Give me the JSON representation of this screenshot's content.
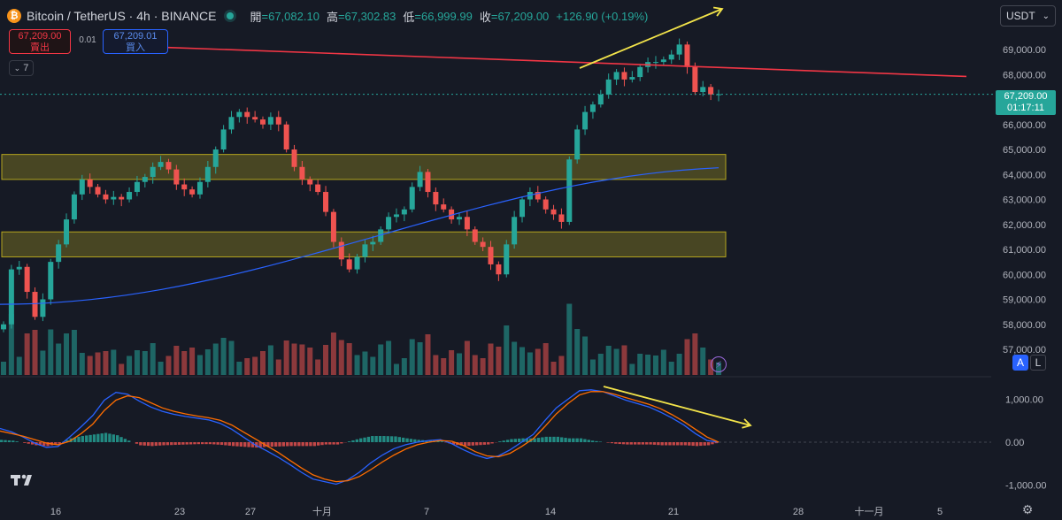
{
  "header": {
    "symbol": "Bitcoin / TetherUS · 4h · BINANCE",
    "logo": "₿",
    "open_label": "開",
    "open": "=67,082.10",
    "high_label": "高",
    "high": "=67,302.83",
    "low_label": "低",
    "low": "=66,999.99",
    "close_label": "收",
    "close": "=67,209.00",
    "change": "+126.90 (+0.19%)"
  },
  "trade": {
    "sell_price": "67,209.00",
    "sell_label": "賣出",
    "buy_price": "67,209.01",
    "buy_label": "買入",
    "spread": "0.01"
  },
  "indicators_toggle": {
    "count": "7",
    "icon": "chevron-down-icon"
  },
  "currency": {
    "label": "USDT",
    "icon": "chevron-down-icon"
  },
  "price_tag": {
    "price": "67,209.00",
    "countdown": "01:17:11"
  },
  "scale_buttons": {
    "auto": "A",
    "log": "L"
  },
  "colors": {
    "up": "#26a69a",
    "down": "#ef5350",
    "ma": "#2962ff",
    "trend": "#f23645",
    "annotation": "#f3e44a",
    "zone": "#b5a51e"
  },
  "chart_data": {
    "type": "candlestick",
    "interval": "4h",
    "y_axis": {
      "ticks": [
        "69,000.00",
        "68,000.00",
        "67,000.00",
        "66,000.00",
        "65,000.00",
        "64,000.00",
        "63,000.00",
        "62,000.00",
        "61,000.00",
        "60,000.00",
        "59,000.00",
        "58,000.00",
        "57,000.00"
      ],
      "range": [
        57000,
        69800
      ]
    },
    "x_axis": {
      "ticks": [
        "16",
        "23",
        "27",
        "十月",
        "7",
        "14",
        "21",
        "28",
        "十一月",
        "5"
      ]
    },
    "candles_close_path": [
      58000,
      60200,
      60300,
      59300,
      58300,
      59000,
      60500,
      61200,
      62200,
      63200,
      63800,
      63500,
      63200,
      63000,
      63100,
      63000,
      63300,
      63700,
      63900,
      64300,
      64500,
      64200,
      63600,
      63400,
      63200,
      63700,
      64300,
      65000,
      65800,
      66300,
      66500,
      66300,
      66200,
      66000,
      66300,
      66000,
      65000,
      64300,
      63800,
      63600,
      63300,
      62500,
      61300,
      60600,
      60200,
      60700,
      61200,
      61300,
      61800,
      62300,
      62400,
      62600,
      63500,
      64100,
      63300,
      62800,
      62600,
      62200,
      62300,
      61800,
      61300,
      61100,
      60400,
      60000,
      61200,
      62300,
      63000,
      63300,
      63000,
      62600,
      62400,
      62100,
      64600,
      65800,
      66500,
      66800,
      67200,
      67800,
      68100,
      67800,
      67900,
      68300,
      68500,
      68500,
      68600,
      68800,
      69200,
      68300,
      67300,
      67500,
      67200,
      67209
    ],
    "moving_average": {
      "start": 58800,
      "end": 64300
    },
    "zones": [
      {
        "from": 63800,
        "to": 64800
      },
      {
        "from": 60700,
        "to": 61700
      }
    ],
    "trendline": {
      "from": 68800,
      "to": 68100
    },
    "macd": {
      "y_ticks": [
        "1,000.00",
        "0.00",
        "-1,000.00"
      ],
      "range": [
        -1000,
        1100
      ],
      "macd_line": [
        320,
        240,
        120,
        -20,
        -120,
        -100,
        120,
        360,
        620,
        980,
        1160,
        1120,
        960,
        820,
        720,
        650,
        600,
        560,
        520,
        440,
        300,
        120,
        -60,
        -200,
        -350,
        -520,
        -700,
        -860,
        -920,
        -980,
        -880,
        -700,
        -480,
        -300,
        -150,
        -60,
        0,
        40,
        60,
        -40,
        -180,
        -300,
        -380,
        -320,
        -180,
        0,
        180,
        500,
        800,
        1000,
        1200,
        1220,
        1180,
        1080,
        980,
        900,
        820,
        700,
        560,
        400,
        200,
        40,
        0
      ],
      "signal_line": [
        260,
        200,
        140,
        60,
        -20,
        -60,
        20,
        200,
        420,
        740,
        980,
        1080,
        1040,
        920,
        800,
        720,
        660,
        610,
        570,
        510,
        400,
        240,
        80,
        -80,
        -240,
        -420,
        -600,
        -760,
        -860,
        -920,
        -900,
        -800,
        -640,
        -460,
        -300,
        -160,
        -60,
        0,
        40,
        20,
        -80,
        -220,
        -320,
        -340,
        -260,
        -100,
        80,
        360,
        660,
        900,
        1100,
        1180,
        1180,
        1120,
        1040,
        960,
        880,
        780,
        640,
        480,
        300,
        120,
        0
      ]
    }
  }
}
